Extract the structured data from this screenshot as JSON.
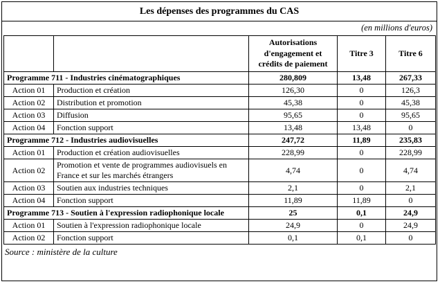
{
  "title": "Les dépenses des programmes du CAS",
  "unit_note": "(en millions d'euros)",
  "source": "Source : ministère de la culture",
  "table": {
    "columns": {
      "ae": "Autorisations d'engagement et crédits de paiement",
      "t3": "Titre 3",
      "t6": "Titre 6"
    },
    "rows": [
      {
        "type": "program",
        "label": "Programme 711 - Industries cinématographiques",
        "ae": "280,809",
        "t3": "13,48",
        "t6": "267,33"
      },
      {
        "type": "action",
        "code": "Action 01",
        "label": "Production et création",
        "ae": "126,30",
        "t3": "0",
        "t6": "126,3"
      },
      {
        "type": "action",
        "code": "Action 02",
        "label": "Distribution et promotion",
        "ae": "45,38",
        "t3": "0",
        "t6": "45,38"
      },
      {
        "type": "action",
        "code": "Action 03",
        "label": "Diffusion",
        "ae": "95,65",
        "t3": "0",
        "t6": "95,65"
      },
      {
        "type": "action",
        "code": "Action 04",
        "label": "Fonction support",
        "ae": "13,48",
        "t3": "13,48",
        "t6": "0"
      },
      {
        "type": "program",
        "label": "Programme 712 - Industries audiovisuelles",
        "ae": "247,72",
        "t3": "11,89",
        "t6": "235,83"
      },
      {
        "type": "action",
        "code": "Action 01",
        "label": "Production et création audiovisuelles",
        "ae": "228,99",
        "t3": "0",
        "t6": "228,99"
      },
      {
        "type": "action",
        "code": "Action 02",
        "label": "Promotion et vente de programmes audiovisuels en France et sur les marchés étrangers",
        "ae": "4,74",
        "t3": "0",
        "t6": "4,74"
      },
      {
        "type": "action",
        "code": "Action 03",
        "label": "Soutien aux industries techniques",
        "ae": "2,1",
        "t3": "0",
        "t6": "2,1"
      },
      {
        "type": "action",
        "code": "Action 04",
        "label": "Fonction support",
        "ae": "11,89",
        "t3": "11,89",
        "t6": "0"
      },
      {
        "type": "program",
        "label": "Programme 713 - Soutien à l'expression radiophonique locale",
        "ae": "25",
        "t3": "0,1",
        "t6": "24,9"
      },
      {
        "type": "action",
        "code": "Action 01",
        "label": "Soutien à l'expression radiophonique locale",
        "ae": "24,9",
        "t3": "0",
        "t6": "24,9"
      },
      {
        "type": "action",
        "code": "Action 02",
        "label": "Fonction support",
        "ae": "0,1",
        "t3": "0,1",
        "t6": "0"
      }
    ]
  }
}
